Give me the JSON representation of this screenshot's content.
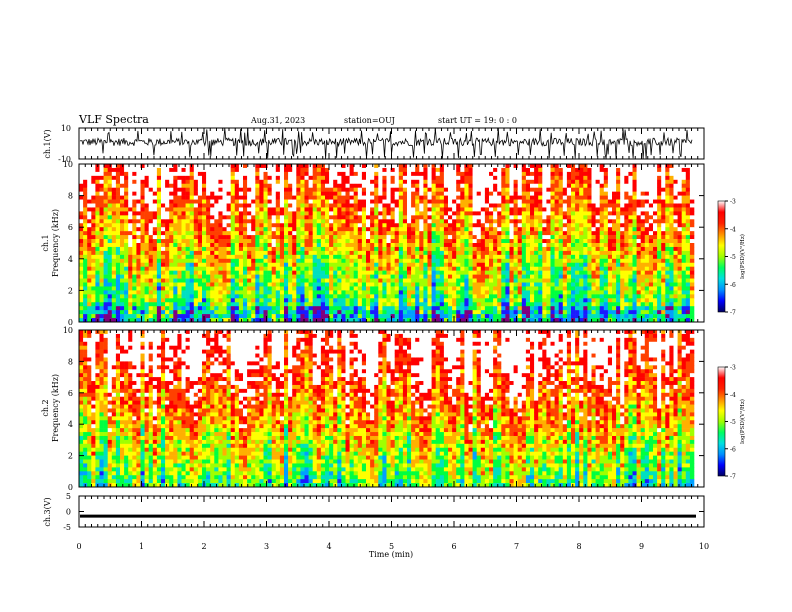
{
  "header": {
    "title": "VLF Spectra",
    "date": "Aug.31, 2023",
    "station": "station=OUJ",
    "start_ut": "start UT =  19: 0 : 0"
  },
  "colors": {
    "scale": [
      "#7f007f",
      "#1a1aff",
      "#00a0ff",
      "#00e0c0",
      "#00ff40",
      "#a0ff00",
      "#ffff00",
      "#ffb000",
      "#ff4000",
      "#ff0000",
      "#ffffff"
    ],
    "trace": "#000000"
  },
  "chart_data": [
    {
      "type": "line",
      "name": "ch1-waveform",
      "ylabel": "ch.1(V)",
      "ylim": [
        -10,
        10
      ],
      "yticks": [
        10,
        -10
      ],
      "xlim": [
        0,
        10
      ]
    },
    {
      "type": "heatmap",
      "name": "ch1-spectrogram",
      "ylabel_top": "ch.1",
      "ylabel": "Frequency (kHz)",
      "ylim": [
        0,
        10
      ],
      "yticks": [
        0,
        2,
        4,
        6,
        8,
        10
      ],
      "xlim": [
        0,
        10
      ],
      "colorbar": {
        "min": -7,
        "max": -3,
        "ticks": [
          -3,
          -4,
          -5,
          -6,
          -7
        ],
        "label": "log(PSD)(V²/Hz)"
      }
    },
    {
      "type": "heatmap",
      "name": "ch2-spectrogram",
      "ylabel_top": "ch.2",
      "ylabel": "Frequency (kHz)",
      "ylim": [
        0,
        10
      ],
      "yticks": [
        0,
        2,
        4,
        6,
        8,
        10
      ],
      "xlim": [
        0,
        10
      ],
      "colorbar": {
        "min": -7,
        "max": -3,
        "ticks": [
          -3,
          -4,
          -5,
          -6,
          -7
        ],
        "label": "log(PSD)(V²/Hz)"
      }
    },
    {
      "type": "line",
      "name": "ch3-waveform",
      "ylabel": "ch.3(V)",
      "ylim": [
        -5,
        5
      ],
      "yticks": [
        5,
        0,
        -5
      ],
      "xlim": [
        0,
        10
      ],
      "level": -1.5
    }
  ],
  "xaxis": {
    "label": "Time (min)",
    "ticks": [
      0,
      1,
      2,
      3,
      4,
      5,
      6,
      7,
      8,
      9,
      10
    ]
  }
}
